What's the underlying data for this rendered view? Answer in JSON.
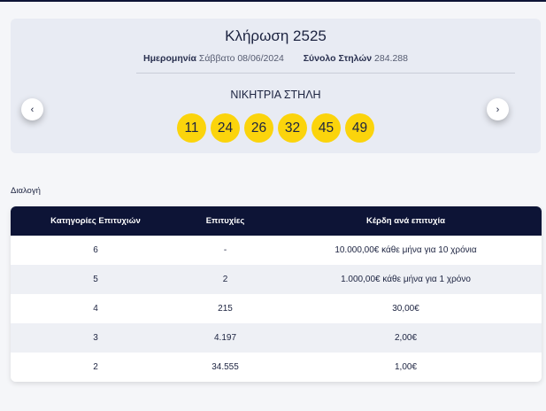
{
  "draw": {
    "title": "Κλήρωση 2525",
    "date_label": "Ημερομηνία",
    "date_value": "Σάββατο 08/06/2024",
    "columns_label": "Σύνολο Στηλών",
    "columns_value": "284.288",
    "winning_label": "ΝΙΚΗΤΡΙΑ ΣΤΗΛΗ",
    "numbers": [
      "11",
      "24",
      "26",
      "32",
      "45",
      "49"
    ],
    "prev_icon": "‹",
    "next_icon": "›"
  },
  "section_label": "Διαλογή",
  "table": {
    "headers": [
      "Κατηγορίες Επιτυχιών",
      "Επιτυχίες",
      "Κέρδη ανά επιτυχία"
    ],
    "rows": [
      [
        "6",
        "-",
        "10.000,00€ κάθε μήνα για 10 χρόνια"
      ],
      [
        "5",
        "2",
        "1.000,00€ κάθε μήνα για 1 χρόνο"
      ],
      [
        "4",
        "215",
        "30,00€"
      ],
      [
        "3",
        "4.197",
        "2,00€"
      ],
      [
        "2",
        "34.555",
        "1,00€"
      ]
    ]
  },
  "colors": {
    "ball": "#fbd40c",
    "header_bg": "#0d1436",
    "card_bg": "#e8ebf3"
  }
}
